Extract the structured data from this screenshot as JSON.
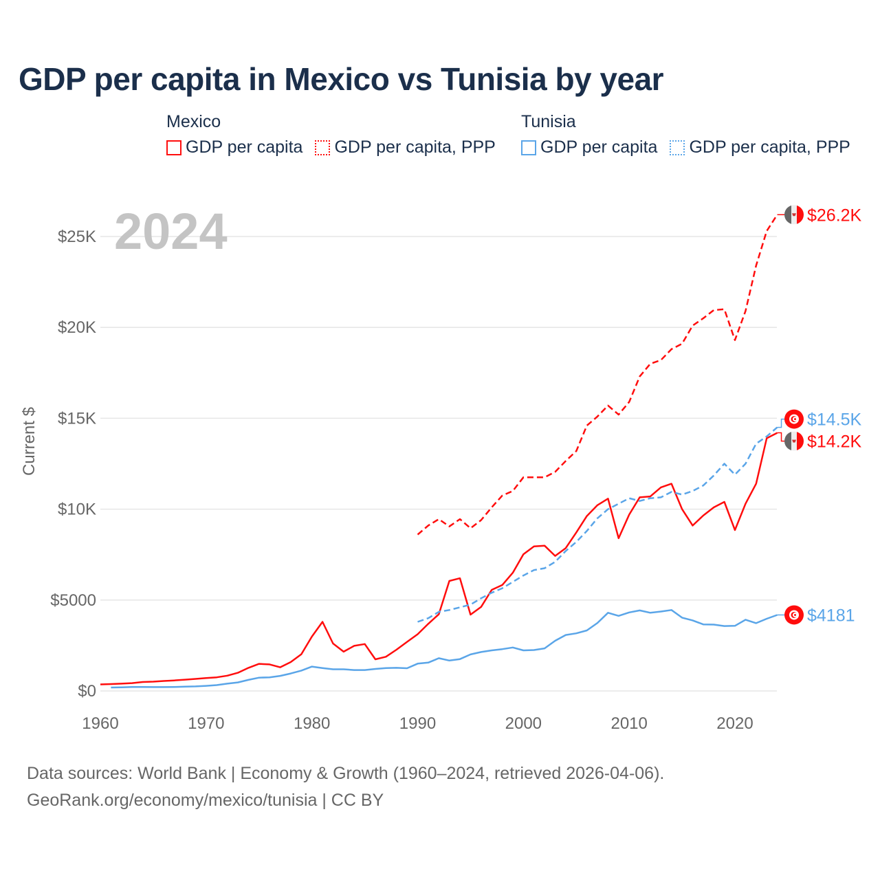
{
  "title": "GDP per capita in Mexico vs Tunisia by year",
  "legend": {
    "mexico": {
      "label": "Mexico",
      "items": [
        "GDP per capita",
        "GDP per capita, PPP"
      ]
    },
    "tunisia": {
      "label": "Tunisia",
      "items": [
        "GDP per capita",
        "GDP per capita, PPP"
      ]
    }
  },
  "colors": {
    "mexico": "#ff0d0d",
    "tunisia": "#5aa5e8",
    "grid": "#e6e6e6",
    "axis_text": "#666666",
    "year_watermark": "#c4c4c4"
  },
  "footer": {
    "line1": "Data sources: World Bank | Economy & Growth (1960–2024, retrieved 2026-04-06).",
    "line2": "GeoRank.org/economy/mexico/tunisia | CC BY"
  },
  "chart_data": {
    "type": "line",
    "title": "GDP per capita in Mexico vs Tunisia by year",
    "xlabel": "",
    "ylabel": "Current $",
    "year_watermark": "2024",
    "xlim": [
      1960,
      2024
    ],
    "ylim": [
      0,
      27000
    ],
    "grid": true,
    "legend_position": "top",
    "x_ticks": [
      1960,
      1970,
      1980,
      1990,
      2000,
      2010,
      2020
    ],
    "x_tick_labels": [
      "1960",
      "1970",
      "1980",
      "1990",
      "2000",
      "2010",
      "2020"
    ],
    "y_ticks": [
      0,
      5000,
      10000,
      15000,
      20000,
      25000
    ],
    "y_tick_labels": [
      "$0",
      "$5000",
      "$10K",
      "$15K",
      "$20K",
      "$25K"
    ],
    "series": [
      {
        "name": "Mexico GDP per capita",
        "country": "mexico",
        "dashed": false,
        "end_label": "$14.2K",
        "start": 1960,
        "values": [
          360,
          380,
          400,
          430,
          490,
          510,
          550,
          580,
          620,
          660,
          710,
          750,
          840,
          1000,
          1270,
          1490,
          1460,
          1300,
          1590,
          2020,
          2990,
          3800,
          2610,
          2160,
          2480,
          2580,
          1740,
          1880,
          2270,
          2700,
          3120,
          3690,
          4220,
          6050,
          6200,
          4200,
          4620,
          5560,
          5830,
          6500,
          7520,
          7950,
          7990,
          7430,
          7860,
          8720,
          9620,
          10220,
          10580,
          8400,
          9700,
          10650,
          10700,
          11200,
          11400,
          10000,
          9100,
          9650,
          10100,
          10400,
          8850,
          10300,
          11400,
          13900,
          14200
        ]
      },
      {
        "name": "Mexico GDP per capita, PPP",
        "country": "mexico",
        "dashed": true,
        "end_label": "$26.2K",
        "start": 1990,
        "values": [
          8600,
          9100,
          9450,
          9050,
          9450,
          8950,
          9400,
          10100,
          10750,
          11000,
          11750,
          11750,
          11750,
          12050,
          12650,
          13200,
          14600,
          15100,
          15700,
          15200,
          15900,
          17300,
          18000,
          18200,
          18800,
          19100,
          20100,
          20500,
          20950,
          21000,
          19300,
          20900,
          23400,
          25300,
          26200
        ]
      },
      {
        "name": "Tunisia GDP per capita",
        "country": "tunisia",
        "dashed": false,
        "end_label": "$4181",
        "start": 1961,
        "values": [
          190,
          200,
          220,
          220,
          210,
          210,
          220,
          240,
          250,
          280,
          320,
          400,
          470,
          610,
          730,
          750,
          830,
          960,
          1120,
          1340,
          1260,
          1190,
          1190,
          1150,
          1150,
          1210,
          1260,
          1270,
          1250,
          1500,
          1560,
          1800,
          1670,
          1750,
          2010,
          2140,
          2230,
          2300,
          2390,
          2230,
          2250,
          2340,
          2760,
          3080,
          3170,
          3330,
          3740,
          4300,
          4130,
          4320,
          4430,
          4300,
          4370,
          4450,
          4030,
          3880,
          3660,
          3650,
          3570,
          3580,
          3920,
          3730,
          3970,
          4181
        ]
      },
      {
        "name": "Tunisia GDP per capita, PPP",
        "country": "tunisia",
        "dashed": true,
        "end_label": "$14.5K",
        "start": 1990,
        "values": [
          3800,
          4000,
          4350,
          4450,
          4600,
          4750,
          5100,
          5400,
          5650,
          6000,
          6350,
          6650,
          6750,
          7100,
          7700,
          8200,
          8800,
          9500,
          10000,
          10300,
          10600,
          10450,
          10600,
          10650,
          10950,
          10800,
          11000,
          11300,
          11850,
          12500,
          11900,
          12500,
          13600,
          14000,
          14500
        ]
      }
    ]
  }
}
